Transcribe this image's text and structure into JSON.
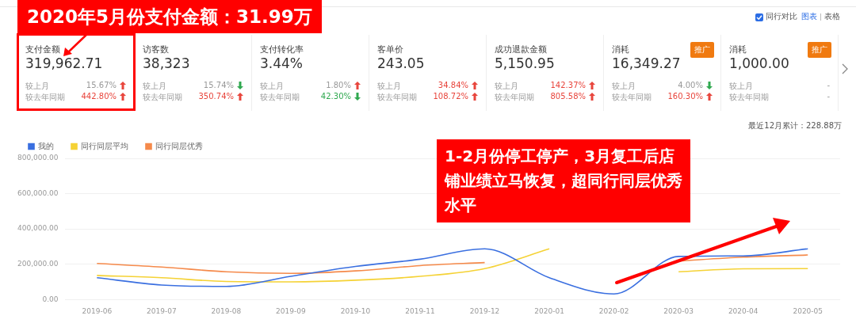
{
  "chart_data": [
    {
      "type": "other",
      "title": "2020年5月份支付金额：31.99万",
      "annotations": [
        "同行对比",
        "图表",
        "表格",
        "支付金额",
        "319,962.71",
        "较上月",
        "15.67%",
        "较去年同期",
        "442.80%",
        "访客数",
        "38,323",
        "较上月",
        "15.74%",
        "较去年同期",
        "350.74%",
        "支付转化率",
        "3.44%",
        "较上月",
        "1.80%",
        "较去年同期",
        "42.30%",
        "客单价",
        "243.05",
        "较上月",
        "34.84%",
        "较去年同期",
        "108.72%",
        "成功退款金额",
        "5,150.95",
        "较上月",
        "142.37%",
        "较去年同期",
        "805.58%",
        "消耗",
        "16,349.27",
        "较上月",
        "4.00%",
        "较去年同期",
        "160.30%",
        "消耗",
        "1,000.00",
        "较上月",
        "-",
        "较去年同期",
        "-",
        "推广",
        "推广"
      ]
    },
    {
      "type": "line",
      "categories": [
        "2019-06",
        "2019-07",
        "2019-08",
        "2019-09",
        "2019-10",
        "2019-11",
        "2019-12",
        "2020-01",
        "2020-02",
        "2020-03",
        "2020-04",
        "2020-05"
      ],
      "series": [
        {
          "name": "我的",
          "color": "#3a6fe0",
          "values": [
            123000,
            82000,
            74000,
            131000,
            187000,
            228000,
            287000,
            123000,
            31000,
            244000,
            247000,
            287000
          ]
        },
        {
          "name": "同行同层平均",
          "color": "#f5d235",
          "values": [
            136000,
            123000,
            102000,
            100000,
            109000,
            131000,
            175000,
            287000,
            null,
            157000,
            174000,
            175000
          ]
        },
        {
          "name": "同行同层优秀",
          "color": "#f58a4b",
          "values": [
            204000,
            184000,
            157000,
            148000,
            162000,
            192000,
            209000,
            null,
            null,
            218000,
            240000,
            252000
          ]
        }
      ],
      "ylim": [
        0,
        800000
      ],
      "yticks": [
        {
          "value": 0,
          "label": "0.00"
        },
        {
          "value": 200000,
          "label": "200,000.00"
        },
        {
          "value": 400000,
          "label": "400,000.00"
        },
        {
          "value": 600000,
          "label": "600,000.00"
        },
        {
          "value": 800000,
          "label": "800,000.00"
        }
      ],
      "grid": "y",
      "legend": "top left",
      "marker": "none",
      "line_style": "solid",
      "annotations": [
        "1-2月份停工停产，3月复工后店铺业绩立马恢复，超同行同层优秀水平",
        "最近12月累计：228.88万"
      ]
    }
  ]
}
